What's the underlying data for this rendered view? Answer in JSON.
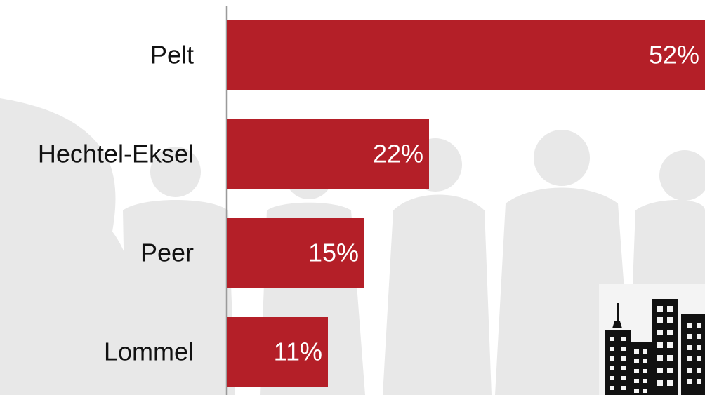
{
  "chart_data": {
    "type": "bar",
    "orientation": "horizontal",
    "categories": [
      "Pelt",
      "Hechtel-Eksel",
      "Peer",
      "Lommel"
    ],
    "values": [
      52,
      22,
      15,
      11
    ],
    "value_labels": [
      "52%",
      "22%",
      "15%",
      "11%"
    ],
    "unit": "%",
    "xlim": [
      0,
      52
    ],
    "title": "",
    "xlabel": "",
    "ylabel": "",
    "grid": false,
    "legend": "none",
    "bar_color": "#B41F28",
    "background_silhouette_color": "#e9e9e9",
    "decorative_icon": "city-skyline-icon"
  }
}
